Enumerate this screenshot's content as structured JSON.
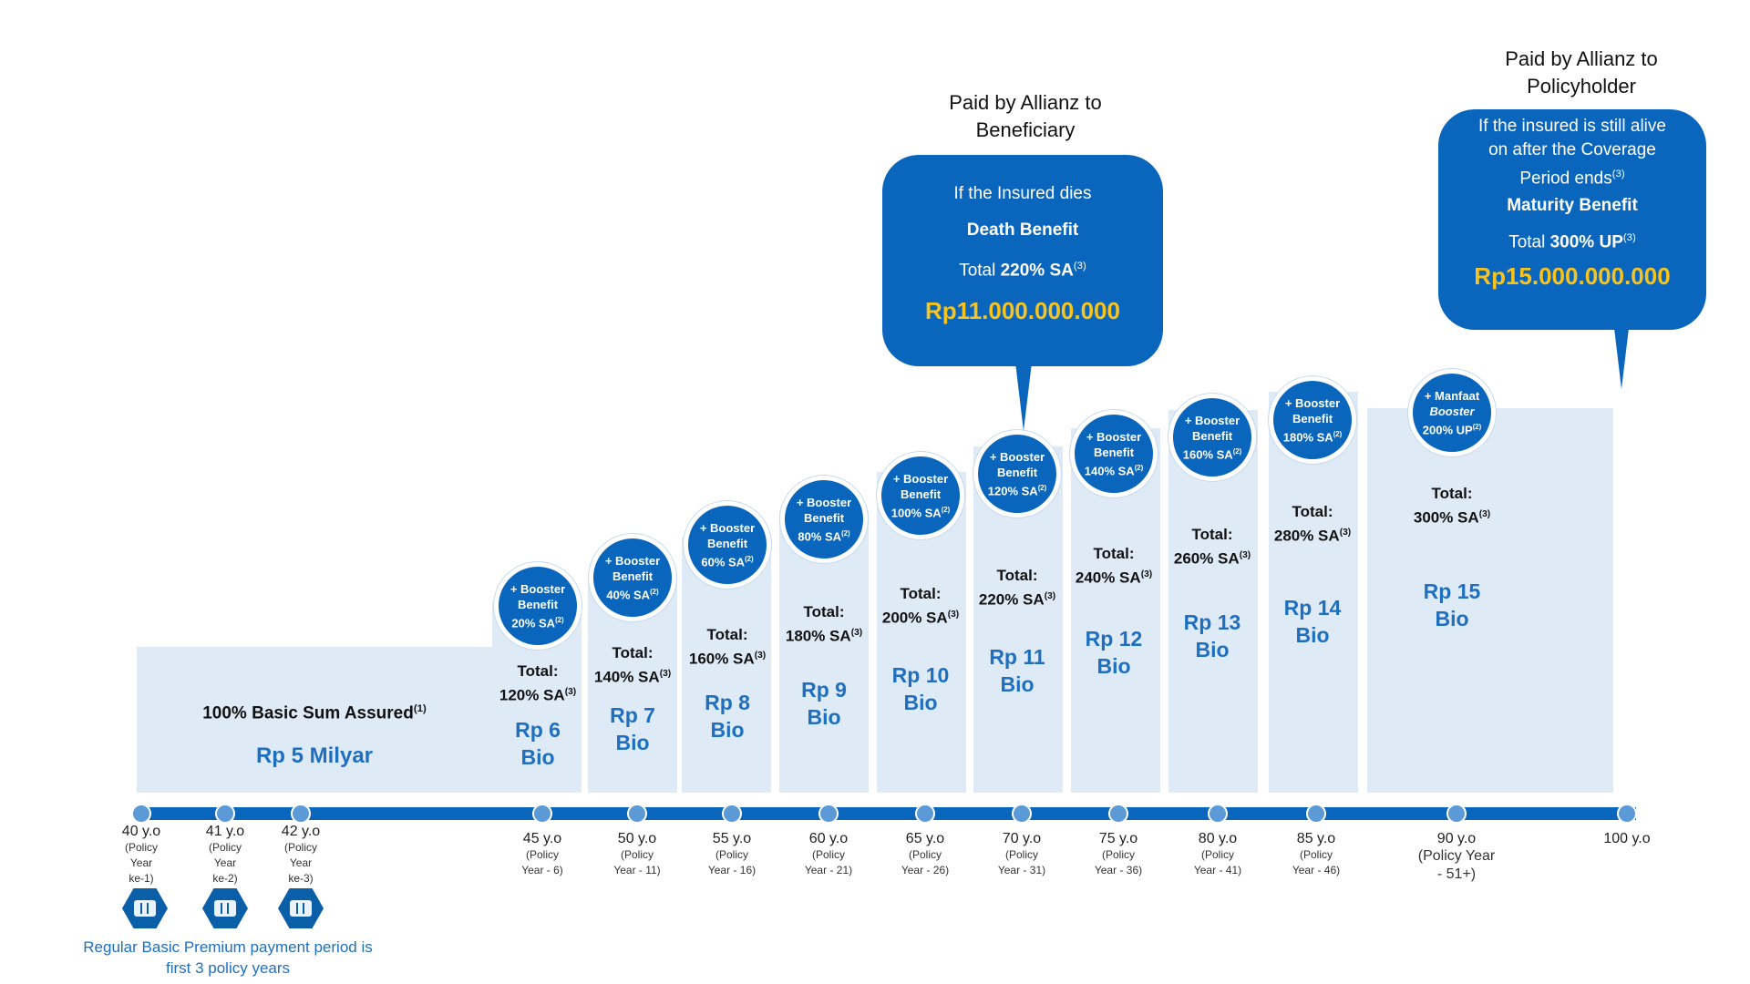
{
  "base": {
    "title": "100% Basic Sum Assured",
    "title_sup": "(1)",
    "amount": "Rp 5 Milyar"
  },
  "steps": [
    {
      "booster": [
        "+ Booster",
        "Benefit",
        "20% SA(2)"
      ],
      "total_label": "Total:",
      "total_value": "120% SA(3)",
      "amount": [
        "Rp 6",
        "Bio"
      ]
    },
    {
      "booster": [
        "+ Booster",
        "Benefit",
        "40% SA(2)"
      ],
      "total_label": "Total:",
      "total_value": "140% SA(3)",
      "amount": [
        "Rp 7",
        "Bio"
      ]
    },
    {
      "booster": [
        "+ Booster",
        "Benefit",
        "60% SA(2)"
      ],
      "total_label": "Total:",
      "total_value": "160% SA(3)",
      "amount": [
        "Rp 8",
        "Bio"
      ]
    },
    {
      "booster": [
        "+ Booster",
        "Benefit",
        "80% SA(2)"
      ],
      "total_label": "Total:",
      "total_value": "180% SA(3)",
      "amount": [
        "Rp 9",
        "Bio"
      ]
    },
    {
      "booster": [
        "+ Booster",
        "Benefit",
        "100% SA(2)"
      ],
      "total_label": "Total:",
      "total_value": "200% SA(3)",
      "amount": [
        "Rp 10",
        "Bio"
      ]
    },
    {
      "booster": [
        "+ Booster",
        "Benefit",
        "120% SA(2)"
      ],
      "total_label": "Total:",
      "total_value": "220% SA(3)",
      "amount": [
        "Rp 11",
        "Bio"
      ]
    },
    {
      "booster": [
        "+ Booster",
        "Benefit",
        "140% SA(2)"
      ],
      "total_label": "Total:",
      "total_value": "240% SA(3)",
      "amount": [
        "Rp 12",
        "Bio"
      ]
    },
    {
      "booster": [
        "+ Booster",
        "Benefit",
        "160% SA(2)"
      ],
      "total_label": "Total:",
      "total_value": "260% SA(3)",
      "amount": [
        "Rp 13",
        "Bio"
      ]
    },
    {
      "booster": [
        "+ Booster",
        "Benefit",
        "180% SA(2)"
      ],
      "total_label": "Total:",
      "total_value": "280% SA(3)",
      "amount": [
        "Rp 14",
        "Bio"
      ]
    },
    {
      "booster": [
        "+ Manfaat",
        "Booster",
        "200% UP(2)"
      ],
      "total_label": "Total:",
      "total_value": "300% SA(3)",
      "amount": [
        "Rp 15",
        "Bio"
      ]
    }
  ],
  "timeline": [
    {
      "age": "40 y.o",
      "sub": [
        "(Policy",
        "Year",
        "ke-1)"
      ]
    },
    {
      "age": "41 y.o",
      "sub": [
        "(Policy",
        "Year",
        "ke-2)"
      ]
    },
    {
      "age": "42 y.o",
      "sub": [
        "(Policy",
        "Year",
        "ke-3)"
      ]
    },
    {
      "age": "45 y.o",
      "sub": [
        "(Policy",
        "Year - 6)"
      ]
    },
    {
      "age": "50 y.o",
      "sub": [
        "(Policy",
        "Year - 11)"
      ]
    },
    {
      "age": "55 y.o",
      "sub": [
        "(Policy",
        "Year - 16)"
      ]
    },
    {
      "age": "60 y.o",
      "sub": [
        "(Policy",
        "Year - 21)"
      ]
    },
    {
      "age": "65 y.o",
      "sub": [
        "(Policy",
        "Year - 26)"
      ]
    },
    {
      "age": "70 y.o",
      "sub": [
        "(Policy",
        "Year - 31)"
      ]
    },
    {
      "age": "75 y.o",
      "sub": [
        "(Policy",
        "Year - 36)"
      ]
    },
    {
      "age": "80 y.o",
      "sub": [
        "(Policy",
        "Year - 41)"
      ]
    },
    {
      "age": "85 y.o",
      "sub": [
        "(Policy",
        "Year - 46)"
      ]
    },
    {
      "age": "90 y.o",
      "sub": [
        "(Policy Year",
        "- 51+)"
      ]
    },
    {
      "age": "100 y.o",
      "sub": []
    }
  ],
  "premium_note": [
    "Regular Basic Premium payment period is",
    "first 3 policy years"
  ],
  "death": {
    "heading": [
      "Paid by Allianz to",
      "Beneficiary"
    ],
    "condition": [
      "If the Insured dies"
    ],
    "benefit": "Death Benefit",
    "total_prefix": "Total ",
    "total_value": "220% SA",
    "total_sup": "(3)",
    "amount": "Rp11.000.000.000"
  },
  "maturity": {
    "heading": [
      "Paid by Allianz to",
      "Policyholder"
    ],
    "condition": [
      "If the insured is still alive",
      "on after the Coverage",
      "Period ends"
    ],
    "condition_sup": "(3)",
    "benefit": "Maturity Benefit",
    "total_prefix": "Total ",
    "total_value": "300% UP",
    "total_sup": "(3)",
    "amount": "Rp15.000.000.000"
  },
  "colors": {
    "primary": "#0a66bd",
    "bar": "#deeaf6",
    "amount_text": "#1f6fc0",
    "money": "#f7c31c"
  }
}
